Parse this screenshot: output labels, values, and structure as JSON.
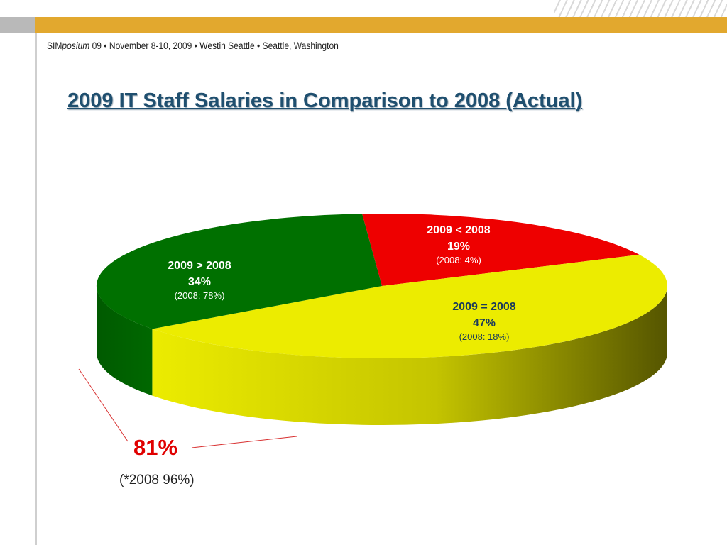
{
  "header": {
    "conference_prefix": "SIM",
    "conference_italic": "posium",
    "conference_rest": " 09  •  November 8-10, 2009  •  Westin Seattle  •  Seattle, Washington"
  },
  "title": "2009 IT Staff Salaries in Comparison to 2008 (Actual)",
  "chart_data": {
    "type": "pie",
    "title": "2009 IT Staff Salaries in Comparison to 2008 (Actual)",
    "slices": [
      {
        "label": "2009 < 2008",
        "value": 19,
        "value_text": "19%",
        "note": "(2008: 4%)",
        "color": "#ee0000"
      },
      {
        "label": "2009 = 2008",
        "value": 47,
        "value_text": "47%",
        "note": "(2008: 18%)",
        "color": "#ecec00"
      },
      {
        "label": "2009 > 2008",
        "value": 34,
        "value_text": "34%",
        "note": "(2008: 78%)",
        "color": "#007000"
      }
    ],
    "three_d": true
  },
  "callout": {
    "value": "81%",
    "note": "(*2008 96%)",
    "color": "#e00000"
  }
}
